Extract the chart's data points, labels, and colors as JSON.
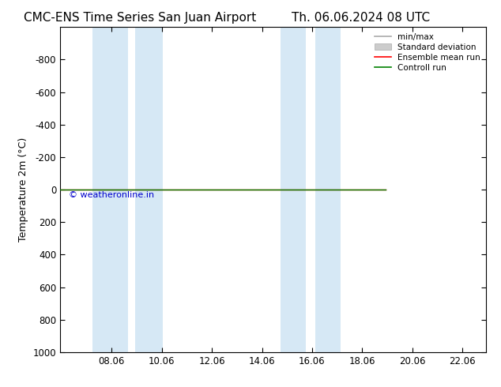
{
  "title_left": "CMC-ENS Time Series San Juan Airport",
  "title_right": "Th. 06.06.2024 08 UTC",
  "ylabel": "Temperature 2m (°C)",
  "xlim": [
    6.0,
    23.0
  ],
  "ylim": [
    1000,
    -1000
  ],
  "yticks": [
    -800,
    -600,
    -400,
    -200,
    0,
    200,
    400,
    600,
    800,
    1000
  ],
  "xticks": [
    8.06,
    10.06,
    12.06,
    14.06,
    16.06,
    18.06,
    20.06,
    22.06
  ],
  "xtick_labels": [
    "08.06",
    "10.06",
    "12.06",
    "14.06",
    "16.06",
    "18.06",
    "20.06",
    "22.06"
  ],
  "background_color": "#ffffff",
  "plot_bg_color": "#ffffff",
  "shaded_regions": [
    [
      7.3,
      8.7
    ],
    [
      9.0,
      10.1
    ],
    [
      14.8,
      15.8
    ],
    [
      16.2,
      17.2
    ]
  ],
  "shaded_color": "#d6e8f5",
  "green_line_x_start": 6.0,
  "green_line_x_end": 19.0,
  "watermark": "© weatheronline.in",
  "watermark_color": "#0000cc",
  "legend_labels": [
    "min/max",
    "Standard deviation",
    "Ensemble mean run",
    "Controll run"
  ],
  "legend_colors": [
    "#aaaaaa",
    "#cccccc",
    "#ff0000",
    "#008000"
  ],
  "title_fontsize": 11,
  "axis_fontsize": 9,
  "tick_fontsize": 8.5
}
